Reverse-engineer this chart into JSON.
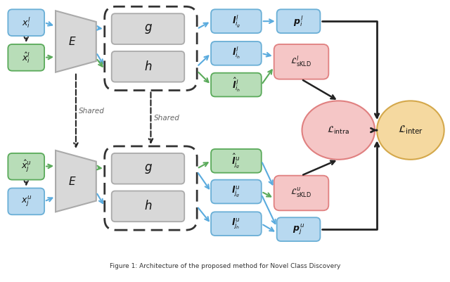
{
  "bg_color": "#ffffff",
  "fig_width": 6.4,
  "fig_height": 4.01,
  "caption": "Figure 1: Architecture of the proposed method for Novel Class Discovery",
  "blue_box_color": "#b8d9f0",
  "blue_box_edge": "#6aafd6",
  "green_box_color": "#b8ddb8",
  "green_box_edge": "#5aaa5a",
  "gray_box_color": "#d8d8d8",
  "gray_box_edge": "#aaaaaa",
  "pink_box_color": "#f5c6c6",
  "pink_box_edge": "#e08080",
  "pink_circle_color": "#f5c6c6",
  "pink_circle_edge": "#e08080",
  "orange_circle_color": "#f5d9a0",
  "orange_circle_edge": "#d4a84b",
  "arrow_blue": "#5aabde",
  "arrow_green": "#5aaa5a",
  "arrow_black": "#222222",
  "text_color": "#111111",
  "shared_text_color": "#666666"
}
